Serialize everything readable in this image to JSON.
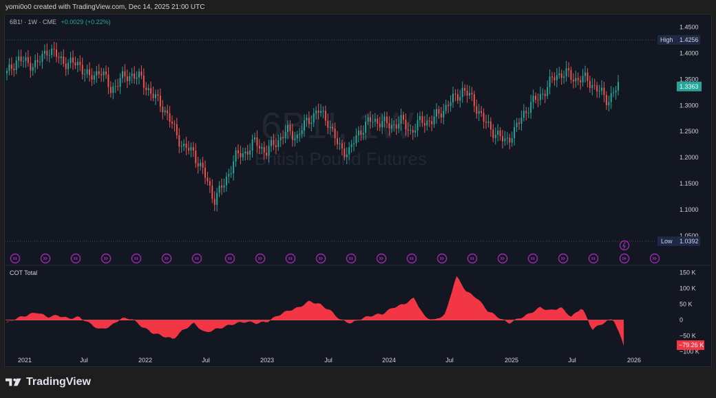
{
  "header": {
    "created_by": "yomi0o0 created with TradingView.com, Dec 14, 2025 21:00 UTC"
  },
  "symbol_line": {
    "text": "6B1! · 1W · CME",
    "change": "+0.0029 (+0.22%)"
  },
  "watermark": {
    "symbol": "6B1!, 1W",
    "description": "British Pound Futures"
  },
  "price_axis": {
    "ticks": [
      "1.4500",
      "1.4000",
      "1.3500",
      "1.3000",
      "1.2500",
      "1.2000",
      "1.1500",
      "1.1000",
      "1.0500"
    ],
    "high_label": "High",
    "high_value": "1.4256",
    "low_label": "Low",
    "low_value": "1.0392",
    "last_value": "1.3363"
  },
  "cot": {
    "label": "COT Total",
    "ticks": [
      "150 K",
      "100 K",
      "50 K",
      "0",
      "−50 K",
      "−100 K"
    ],
    "last_value": "−79.26 K"
  },
  "time_axis": {
    "labels": [
      "2021",
      "Jul",
      "2022",
      "Jul",
      "2023",
      "Jul",
      "2024",
      "Jul",
      "2025",
      "Jul",
      "2026"
    ]
  },
  "footer": {
    "brand": "TradingView"
  },
  "colors": {
    "up": "#26a69a",
    "down": "#ef5350",
    "cot_fill": "#f23645",
    "background": "#131722",
    "event_icon": "#9c27b0"
  },
  "chart_data": [
    {
      "type": "candlestick",
      "title": "British Pound Futures",
      "symbol": "6B1!",
      "interval": "1W",
      "exchange": "CME",
      "x": [
        "2021-01",
        "2021-02",
        "2021-03",
        "2021-04",
        "2021-05",
        "2021-06",
        "2021-07",
        "2021-08",
        "2021-09",
        "2021-10",
        "2021-11",
        "2021-12",
        "2022-01",
        "2022-02",
        "2022-03",
        "2022-04",
        "2022-05",
        "2022-06",
        "2022-07",
        "2022-08",
        "2022-09",
        "2022-10",
        "2022-11",
        "2022-12",
        "2023-01",
        "2023-02",
        "2023-03",
        "2023-04",
        "2023-05",
        "2023-06",
        "2023-07",
        "2023-08",
        "2023-09",
        "2023-10",
        "2023-11",
        "2023-12",
        "2024-01",
        "2024-02",
        "2024-03",
        "2024-04",
        "2024-05",
        "2024-06",
        "2024-07",
        "2024-08",
        "2024-09",
        "2024-10",
        "2024-11",
        "2024-12",
        "2025-01",
        "2025-02",
        "2025-03",
        "2025-04",
        "2025-05",
        "2025-06",
        "2025-07",
        "2025-08",
        "2025-09",
        "2025-10",
        "2025-11",
        "2025-12"
      ],
      "close": [
        1.36,
        1.39,
        1.38,
        1.38,
        1.41,
        1.39,
        1.38,
        1.38,
        1.35,
        1.37,
        1.33,
        1.35,
        1.36,
        1.35,
        1.32,
        1.3,
        1.26,
        1.22,
        1.21,
        1.17,
        1.12,
        1.15,
        1.2,
        1.21,
        1.23,
        1.21,
        1.23,
        1.25,
        1.24,
        1.27,
        1.29,
        1.27,
        1.22,
        1.21,
        1.25,
        1.27,
        1.27,
        1.26,
        1.27,
        1.25,
        1.27,
        1.27,
        1.29,
        1.31,
        1.33,
        1.31,
        1.27,
        1.25,
        1.23,
        1.25,
        1.29,
        1.31,
        1.33,
        1.36,
        1.36,
        1.35,
        1.35,
        1.33,
        1.31,
        1.3363
      ],
      "ylim": [
        1.03,
        1.46
      ],
      "high": 1.4256,
      "low": 1.0392,
      "last": 1.3363
    },
    {
      "type": "area",
      "title": "COT Total",
      "x": [
        "2021-01",
        "2021-02",
        "2021-03",
        "2021-04",
        "2021-05",
        "2021-06",
        "2021-07",
        "2021-08",
        "2021-09",
        "2021-10",
        "2021-11",
        "2021-12",
        "2022-01",
        "2022-02",
        "2022-03",
        "2022-04",
        "2022-05",
        "2022-06",
        "2022-07",
        "2022-08",
        "2022-09",
        "2022-10",
        "2022-11",
        "2022-12",
        "2023-01",
        "2023-02",
        "2023-03",
        "2023-04",
        "2023-05",
        "2023-06",
        "2023-07",
        "2023-08",
        "2023-09",
        "2023-10",
        "2023-11",
        "2023-12",
        "2024-01",
        "2024-02",
        "2024-03",
        "2024-04",
        "2024-05",
        "2024-06",
        "2024-07",
        "2024-08",
        "2024-09",
        "2024-10",
        "2024-11",
        "2024-12",
        "2025-01",
        "2025-02",
        "2025-03",
        "2025-04",
        "2025-05",
        "2025-06",
        "2025-07",
        "2025-08",
        "2025-09",
        "2025-10",
        "2025-11",
        "2025-12"
      ],
      "values": [
        -10,
        5,
        15,
        25,
        10,
        15,
        5,
        10,
        -10,
        -30,
        -20,
        5,
        5,
        -20,
        -40,
        -50,
        -60,
        -30,
        -10,
        -40,
        -30,
        -20,
        -10,
        -5,
        -10,
        -5,
        15,
        30,
        40,
        60,
        50,
        30,
        0,
        -10,
        5,
        15,
        20,
        40,
        50,
        70,
        10,
        0,
        20,
        140,
        90,
        70,
        30,
        10,
        -10,
        5,
        20,
        40,
        30,
        40,
        10,
        40,
        -30,
        -10,
        5,
        -79.26
      ],
      "ylim": [
        -105,
        160
      ],
      "unit": "K",
      "last": -79.26
    }
  ]
}
